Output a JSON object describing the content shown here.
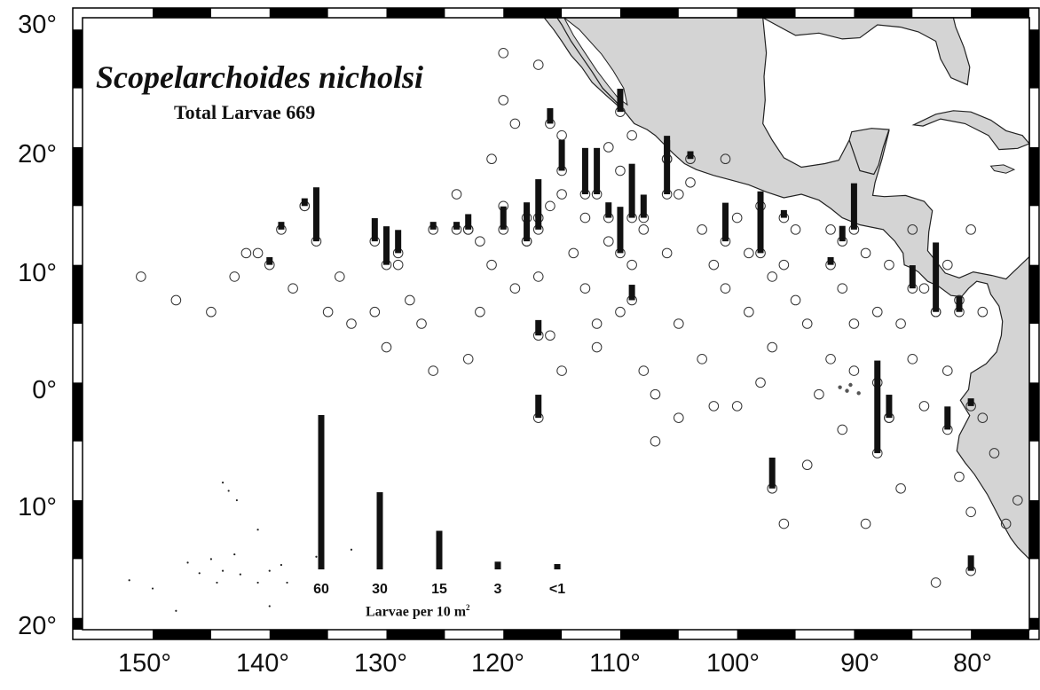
{
  "title": "Scopelarchoides nicholsi",
  "subtitle": "Total Larvae 669",
  "latitude_labels": [
    "30°",
    "20°",
    "10°",
    "0°",
    "10°",
    "20°"
  ],
  "longitude_labels": [
    "150°",
    "140°",
    "130°",
    "120°",
    "110°",
    "100°",
    "90°",
    "80°"
  ],
  "map_extent": {
    "lon_west": 156,
    "lon_east": 75,
    "lat_north": 31,
    "lat_south": -21
  },
  "legend": {
    "items": [
      {
        "label": "60",
        "value": 60
      },
      {
        "label": "30",
        "value": 30
      },
      {
        "label": "15",
        "value": 15
      },
      {
        "label": "3",
        "value": 3
      },
      {
        "label": "<1",
        "value": 1
      }
    ],
    "unit_text": "Larvae per 10 m",
    "unit_superscript": "2"
  },
  "colors": {
    "land": "#d4d4d4",
    "coast": "#222222",
    "bar": "#111111",
    "frame": "#000000"
  },
  "chart_data": {
    "type": "scatter",
    "title": "Scopelarchoides nicholsi",
    "subtitle": "Total Larvae 669",
    "xlabel": "",
    "ylabel": "",
    "x_axis": "longitude (°W)",
    "y_axis": "latitude (°N)",
    "stations_empty": [
      [
        151,
        9
      ],
      [
        148,
        7
      ],
      [
        145,
        6
      ],
      [
        143,
        9
      ],
      [
        142,
        11
      ],
      [
        141,
        11
      ],
      [
        138,
        8
      ],
      [
        137,
        15
      ],
      [
        135,
        6
      ],
      [
        134,
        9
      ],
      [
        133,
        5
      ],
      [
        131,
        6
      ],
      [
        130,
        3
      ],
      [
        129,
        10
      ],
      [
        128,
        7
      ],
      [
        127,
        5
      ],
      [
        126,
        1
      ],
      [
        124,
        16
      ],
      [
        123,
        2
      ],
      [
        122,
        12
      ],
      [
        122,
        6
      ],
      [
        121,
        19
      ],
      [
        121,
        10
      ],
      [
        120,
        28
      ],
      [
        120,
        24
      ],
      [
        119,
        22
      ],
      [
        119,
        8
      ],
      [
        118,
        12
      ],
      [
        117,
        27
      ],
      [
        117,
        9
      ],
      [
        116,
        15
      ],
      [
        116,
        4
      ],
      [
        115,
        21
      ],
      [
        115,
        16
      ],
      [
        115,
        1
      ],
      [
        114,
        11
      ],
      [
        113,
        14
      ],
      [
        113,
        8
      ],
      [
        112,
        5
      ],
      [
        112,
        3
      ],
      [
        111,
        20
      ],
      [
        111,
        12
      ],
      [
        110,
        18
      ],
      [
        110,
        6
      ],
      [
        109,
        21
      ],
      [
        109,
        10
      ],
      [
        108,
        13
      ],
      [
        108,
        1
      ],
      [
        107,
        -1
      ],
      [
        107,
        -5
      ],
      [
        106,
        19
      ],
      [
        106,
        11
      ],
      [
        105,
        16
      ],
      [
        105,
        5
      ],
      [
        105,
        -3
      ],
      [
        104,
        17
      ],
      [
        103,
        13
      ],
      [
        103,
        2
      ],
      [
        102,
        10
      ],
      [
        102,
        -2
      ],
      [
        101,
        19
      ],
      [
        101,
        8
      ],
      [
        100,
        14
      ],
      [
        100,
        -2
      ],
      [
        99,
        11
      ],
      [
        99,
        6
      ],
      [
        98,
        15
      ],
      [
        98,
        0
      ],
      [
        97,
        9
      ],
      [
        97,
        3
      ],
      [
        96,
        10
      ],
      [
        96,
        -12
      ],
      [
        95,
        13
      ],
      [
        95,
        7
      ],
      [
        94,
        5
      ],
      [
        94,
        -7
      ],
      [
        93,
        -1
      ],
      [
        92,
        13
      ],
      [
        92,
        2
      ],
      [
        91,
        8
      ],
      [
        91,
        -4
      ],
      [
        90,
        5
      ],
      [
        90,
        1
      ],
      [
        89,
        11
      ],
      [
        89,
        -12
      ],
      [
        88,
        6
      ],
      [
        88,
        0
      ],
      [
        87,
        10
      ],
      [
        87,
        -3
      ],
      [
        86,
        5
      ],
      [
        86,
        -9
      ],
      [
        85,
        13
      ],
      [
        85,
        2
      ],
      [
        84,
        8
      ],
      [
        84,
        -2
      ],
      [
        83,
        6
      ],
      [
        83,
        -17
      ],
      [
        82,
        10
      ],
      [
        82,
        1
      ],
      [
        81,
        7
      ],
      [
        81,
        -8
      ],
      [
        80,
        13
      ],
      [
        80,
        -11
      ],
      [
        79,
        6
      ],
      [
        79,
        -3
      ],
      [
        78,
        -6
      ],
      [
        77,
        -12
      ],
      [
        76,
        -10
      ],
      [
        120,
        15
      ],
      [
        123,
        13
      ]
    ],
    "stations_positive": [
      {
        "lon": 140,
        "lat": 10,
        "value": 3
      },
      {
        "lon": 139,
        "lat": 13,
        "value": 3
      },
      {
        "lon": 137,
        "lat": 15,
        "value": 3
      },
      {
        "lon": 136,
        "lat": 12,
        "value": 21
      },
      {
        "lon": 131,
        "lat": 12,
        "value": 9
      },
      {
        "lon": 130,
        "lat": 10,
        "value": 15
      },
      {
        "lon": 129,
        "lat": 11,
        "value": 9
      },
      {
        "lon": 126,
        "lat": 13,
        "value": 3
      },
      {
        "lon": 124,
        "lat": 13,
        "value": 3
      },
      {
        "lon": 123,
        "lat": 13,
        "value": 6
      },
      {
        "lon": 120,
        "lat": 13,
        "value": 9
      },
      {
        "lon": 118,
        "lat": 14,
        "value": 6
      },
      {
        "lon": 118,
        "lat": 12,
        "value": 12
      },
      {
        "lon": 117,
        "lat": 14,
        "value": 15
      },
      {
        "lon": 117,
        "lat": 13,
        "value": 6
      },
      {
        "lon": 116,
        "lat": 22,
        "value": 6
      },
      {
        "lon": 115,
        "lat": 18,
        "value": 12
      },
      {
        "lon": 113,
        "lat": 16,
        "value": 18
      },
      {
        "lon": 112,
        "lat": 16,
        "value": 18
      },
      {
        "lon": 111,
        "lat": 14,
        "value": 6
      },
      {
        "lon": 110,
        "lat": 11,
        "value": 18
      },
      {
        "lon": 110,
        "lat": 23,
        "value": 9
      },
      {
        "lon": 109,
        "lat": 14,
        "value": 21
      },
      {
        "lon": 108,
        "lat": 14,
        "value": 9
      },
      {
        "lon": 106,
        "lat": 16,
        "value": 21
      },
      {
        "lon": 106,
        "lat": 19,
        "value": 9
      },
      {
        "lon": 104,
        "lat": 19,
        "value": 3
      },
      {
        "lon": 109,
        "lat": 7,
        "value": 6
      },
      {
        "lon": 101,
        "lat": 12,
        "value": 15
      },
      {
        "lon": 98,
        "lat": 11,
        "value": 24
      },
      {
        "lon": 96,
        "lat": 14,
        "value": 3
      },
      {
        "lon": 92,
        "lat": 10,
        "value": 3
      },
      {
        "lon": 91,
        "lat": 12,
        "value": 6
      },
      {
        "lon": 90,
        "lat": 13,
        "value": 18
      },
      {
        "lon": 85,
        "lat": 8,
        "value": 9
      },
      {
        "lon": 83,
        "lat": 6,
        "value": 27
      },
      {
        "lon": 81,
        "lat": 6,
        "value": 6
      },
      {
        "lon": 88,
        "lat": -6,
        "value": 36
      },
      {
        "lon": 87,
        "lat": -3,
        "value": 9
      },
      {
        "lon": 82,
        "lat": -4,
        "value": 9
      },
      {
        "lon": 80,
        "lat": -2,
        "value": 3
      },
      {
        "lon": 97,
        "lat": -9,
        "value": 12
      },
      {
        "lon": 117,
        "lat": 4,
        "value": 6
      },
      {
        "lon": 117,
        "lat": -3,
        "value": 9
      },
      {
        "lon": 80,
        "lat": -16,
        "value": 6
      }
    ],
    "xlim": [
      156,
      75
    ],
    "ylim": [
      -21,
      31
    ],
    "grid": false,
    "legend": "bottom-center"
  }
}
